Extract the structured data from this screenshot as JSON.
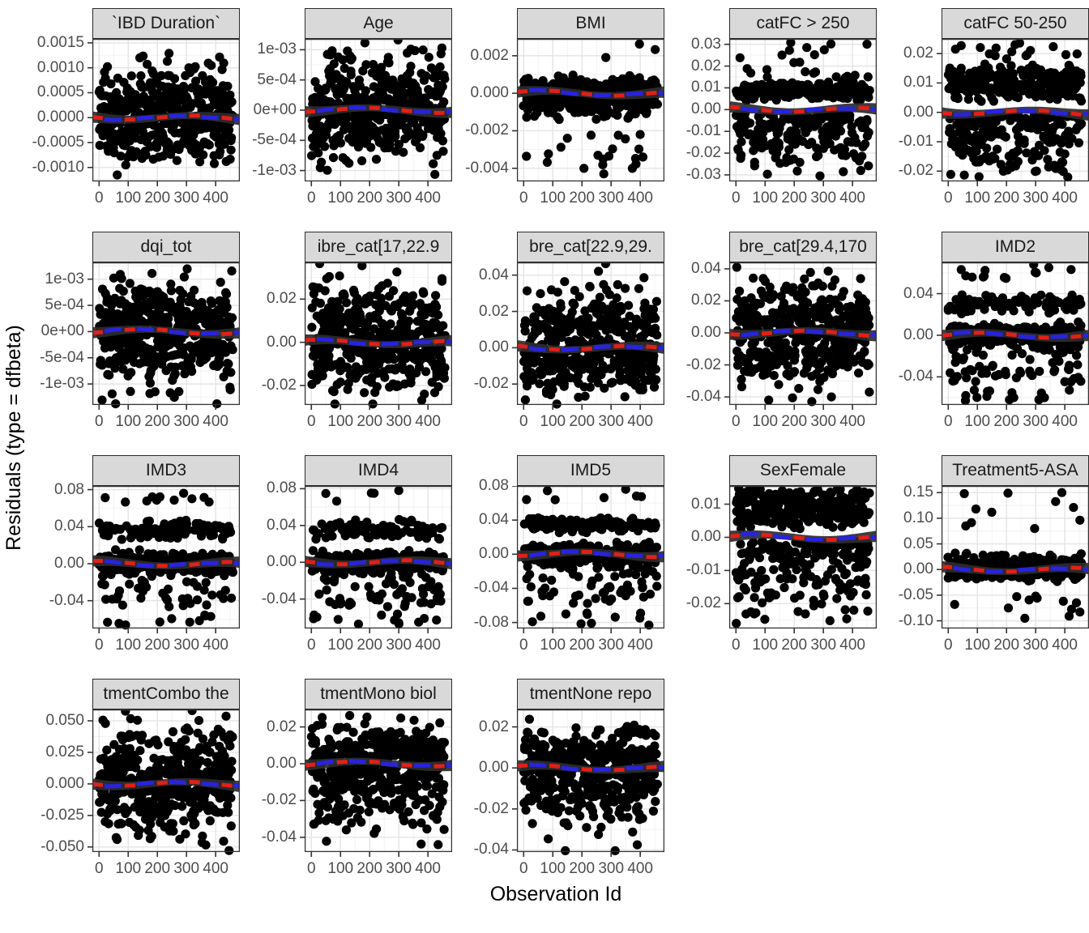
{
  "figure": {
    "y_axis_title": "Residuals (type = dfbeta)",
    "x_axis_title": "Observation Id"
  },
  "colors": {
    "strip_bg": "#d9d9d9",
    "strip_border": "#2b2b2b",
    "panel_bg": "#ffffff",
    "panel_border": "#333333",
    "grid_major": "#e4e4e4",
    "grid_minor": "#f2f2f2",
    "point": "#000000",
    "ribbon": "#2d2d2d",
    "ref_line_red": "#e02019",
    "smooth_line_blue": "#2823dd",
    "axis_text": "#4d4d4d",
    "tick_mark": "#333333"
  },
  "chart_data": {
    "type": "scatter",
    "note": "Faceted regression diagnostic plot of dfbeta residuals vs observation id; ~450 black points per facet scattered around 0 with a dark loess ribbon and alternating red/blue dashed reference-smooth lines at y=0. Point clouds are stochastic; rendered from seeded generators with the per-facet distribution parameters below.",
    "x_axis": {
      "tick_labels": [
        "0",
        "100",
        "200",
        "300",
        "400"
      ],
      "tick_values": [
        0,
        100,
        200,
        300,
        400
      ],
      "domain": [
        -23,
        483
      ]
    },
    "facets": [
      {
        "label": "`IBD Duration`",
        "y_tick_labels": [
          "0.0015",
          "0.0010",
          "0.0005",
          "0.0000",
          "-0.0005",
          "-0.0010"
        ],
        "y_tick_values": [
          0.0015,
          0.001,
          0.0005,
          0,
          -0.0005,
          -0.001
        ],
        "ylim": [
          -0.00128,
          0.00158
        ],
        "shape": {
          "kind": "sym",
          "s": 0.45
        },
        "n_points": 450,
        "seed": 11,
        "extra_points": []
      },
      {
        "label": "Age",
        "y_tick_labels": [
          "1e-03",
          "5e-04",
          "0e+00",
          "-5e-04",
          "-1e-03"
        ],
        "y_tick_values": [
          0.001,
          0.0005,
          0,
          -0.0005,
          -0.001
        ],
        "ylim": [
          -0.00118,
          0.00118
        ],
        "shape": {
          "kind": "sym",
          "s": 0.5
        },
        "n_points": 450,
        "seed": 17,
        "extra_points": []
      },
      {
        "label": "BMI",
        "y_tick_labels": [
          "0.002",
          "0.000",
          "-0.002",
          "-0.004"
        ],
        "y_tick_values": [
          0.002,
          0,
          -0.002,
          -0.004
        ],
        "ylim": [
          -0.0047,
          0.0029
        ],
        "shape": {
          "kind": "tight",
          "s": 0.17,
          "pOut": 0.045,
          "negShare": 0.75
        },
        "n_points": 450,
        "seed": 23,
        "extra_points": [
          [
            275,
            -0.0043
          ],
          [
            150,
            -0.0024
          ]
        ]
      },
      {
        "label": "catFC > 250",
        "y_tick_labels": [
          "0.03",
          "0.02",
          "0.01",
          "0.00",
          "-0.01",
          "-0.02",
          "-0.03"
        ],
        "y_tick_values": [
          0.03,
          0.02,
          0.01,
          0,
          -0.01,
          -0.02,
          -0.03
        ],
        "ylim": [
          -0.033,
          0.0325
        ],
        "shape": {
          "kind": "posband",
          "pBand": 0.5,
          "pNeg": 0.38,
          "bandHi": 0.32
        },
        "n_points": 450,
        "seed": 31,
        "extra_points": []
      },
      {
        "label": "catFC 50-250",
        "y_tick_labels": [
          "0.02",
          "0.01",
          "0.00",
          "-0.01",
          "-0.02"
        ],
        "y_tick_values": [
          0.02,
          0.01,
          0,
          -0.01,
          -0.02
        ],
        "ylim": [
          -0.0235,
          0.025
        ],
        "shape": {
          "kind": "posband",
          "pBand": 0.5,
          "pNeg": 0.33,
          "bandHi": 0.5
        },
        "n_points": 450,
        "seed": 37,
        "extra_points": []
      },
      {
        "label": "dqi_tot",
        "y_tick_labels": [
          "1e-03",
          "5e-04",
          "0e+00",
          "-5e-04",
          "-1e-03"
        ],
        "y_tick_values": [
          0.001,
          0.0005,
          0,
          -0.0005,
          -0.001
        ],
        "ylim": [
          -0.0014,
          0.00132
        ],
        "shape": {
          "kind": "sym",
          "s": 0.5
        },
        "n_points": 450,
        "seed": 41,
        "extra_points": []
      },
      {
        "label": "ibre_cat[17,22.9",
        "y_tick_labels": [
          "0.02",
          "0.00",
          "-0.02"
        ],
        "y_tick_values": [
          0.02,
          0,
          -0.02
        ],
        "ylim": [
          -0.029,
          0.037
        ],
        "shape": {
          "kind": "sym",
          "s": 0.5
        },
        "n_points": 450,
        "seed": 43,
        "extra_points": []
      },
      {
        "label": "bre_cat[22.9,29.",
        "y_tick_labels": [
          "0.04",
          "0.02",
          "0.00",
          "-0.02"
        ],
        "y_tick_values": [
          0.04,
          0.02,
          0,
          -0.02
        ],
        "ylim": [
          -0.0315,
          0.047
        ],
        "shape": {
          "kind": "sym",
          "s": 0.5
        },
        "n_points": 450,
        "seed": 47,
        "extra_points": []
      },
      {
        "label": "bre_cat[29.4,170",
        "y_tick_labels": [
          "0.04",
          "0.02",
          "0.00",
          "-0.02",
          "-0.04"
        ],
        "y_tick_values": [
          0.04,
          0.02,
          0,
          -0.02,
          -0.04
        ],
        "ylim": [
          -0.045,
          0.044
        ],
        "shape": {
          "kind": "sym",
          "s": 0.5
        },
        "n_points": 450,
        "seed": 53,
        "extra_points": []
      },
      {
        "label": "IMD2",
        "y_tick_labels": [
          "0.04",
          "0.00",
          "-0.04"
        ],
        "y_tick_values": [
          0.04,
          0,
          -0.04
        ],
        "ylim": [
          -0.067,
          0.07
        ],
        "shape": {
          "kind": "cluster"
        },
        "n_points": 440,
        "seed": 59,
        "extra_points": [
          [
            293,
            0.068
          ],
          [
            60,
            -0.058
          ],
          [
            210,
            -0.062
          ],
          [
            330,
            -0.06
          ]
        ]
      },
      {
        "label": "IMD3",
        "y_tick_labels": [
          "0.08",
          "0.04",
          "0.00",
          "-0.04"
        ],
        "y_tick_values": [
          0.08,
          0.04,
          0,
          -0.04
        ],
        "ylim": [
          -0.07,
          0.084
        ],
        "shape": {
          "kind": "cluster"
        },
        "n_points": 420,
        "seed": 61,
        "extra_points": [
          [
            290,
            0.076
          ]
        ]
      },
      {
        "label": "IMD4",
        "y_tick_labels": [
          "0.08",
          "0.04",
          "0.00",
          "-0.04"
        ],
        "y_tick_values": [
          0.08,
          0.04,
          0,
          -0.04
        ],
        "ylim": [
          -0.072,
          0.083
        ],
        "shape": {
          "kind": "cluster"
        },
        "n_points": 420,
        "seed": 67,
        "extra_points": [
          [
            300,
            0.078
          ]
        ]
      },
      {
        "label": "IMD5",
        "y_tick_labels": [
          "0.08",
          "0.04",
          "0.00",
          "-0.04",
          "-0.08"
        ],
        "y_tick_values": [
          0.08,
          0.04,
          0,
          -0.04,
          -0.08
        ],
        "ylim": [
          -0.087,
          0.08
        ],
        "shape": {
          "kind": "cluster"
        },
        "n_points": 430,
        "seed": 71,
        "extra_points": [
          [
            350,
            0.076
          ],
          [
            430,
            -0.083
          ]
        ]
      },
      {
        "label": "SexFemale",
        "y_tick_labels": [
          "0.01",
          "0.00",
          "-0.01",
          "-0.02"
        ],
        "y_tick_values": [
          0.01,
          0,
          -0.01,
          -0.02
        ],
        "ylim": [
          -0.0275,
          0.0155
        ],
        "shape": {
          "kind": "posband",
          "pBand": 0.55,
          "pNeg": 0.33,
          "bandHi": 0.75
        },
        "n_points": 460,
        "seed": 73,
        "extra_points": []
      },
      {
        "label": "Treatment5-ASA",
        "y_tick_labels": [
          "0.15",
          "0.10",
          "0.05",
          "0.00",
          "-0.05",
          "-0.10"
        ],
        "y_tick_values": [
          0.15,
          0.1,
          0.05,
          0,
          -0.05,
          -0.1
        ],
        "ylim": [
          -0.115,
          0.163
        ],
        "shape": {
          "kind": "tight",
          "s": 0.11,
          "pOut": 0.02,
          "negShare": 0.5
        },
        "n_points": 440,
        "seed": 79,
        "extra_points": [
          [
            55,
            0.148
          ],
          [
            390,
            0.15
          ],
          [
            430,
            0.121
          ],
          [
            205,
            0.149
          ],
          [
            95,
            0.118
          ],
          [
            60,
            0.085
          ],
          [
            235,
            -0.053
          ],
          [
            305,
            -0.056
          ],
          [
            395,
            -0.062
          ],
          [
            415,
            -0.091
          ],
          [
            440,
            -0.065
          ],
          [
            452,
            -0.083
          ],
          [
            300,
            -0.052
          ]
        ]
      },
      {
        "label": "tmentCombo the",
        "y_tick_labels": [
          "0.050",
          "0.025",
          "0.000",
          "-0.025",
          "-0.050"
        ],
        "y_tick_values": [
          0.05,
          0.025,
          0,
          -0.025,
          -0.05
        ],
        "ylim": [
          -0.054,
          0.059
        ],
        "shape": {
          "kind": "sym",
          "s": 0.55
        },
        "n_points": 430,
        "seed": 83,
        "extra_points": []
      },
      {
        "label": "tmentMono biol",
        "y_tick_labels": [
          "0.02",
          "0.00",
          "-0.02",
          "-0.04"
        ],
        "y_tick_values": [
          0.02,
          0,
          -0.02,
          -0.04
        ],
        "ylim": [
          -0.048,
          0.0295
        ],
        "shape": {
          "kind": "sym",
          "s": 0.5
        },
        "n_points": 450,
        "seed": 89,
        "extra_points": [
          [
            435,
            -0.044
          ],
          [
            120,
            -0.036
          ]
        ]
      },
      {
        "label": "tmentNone repo",
        "y_tick_labels": [
          "0.02",
          "0.00",
          "-0.02",
          "-0.04"
        ],
        "y_tick_values": [
          0.02,
          0,
          -0.02,
          -0.04
        ],
        "ylim": [
          -0.041,
          0.0285
        ],
        "shape": {
          "kind": "sym",
          "s": 0.45
        },
        "n_points": 450,
        "seed": 97,
        "extra_points": [
          [
            390,
            -0.0375
          ]
        ]
      }
    ]
  }
}
